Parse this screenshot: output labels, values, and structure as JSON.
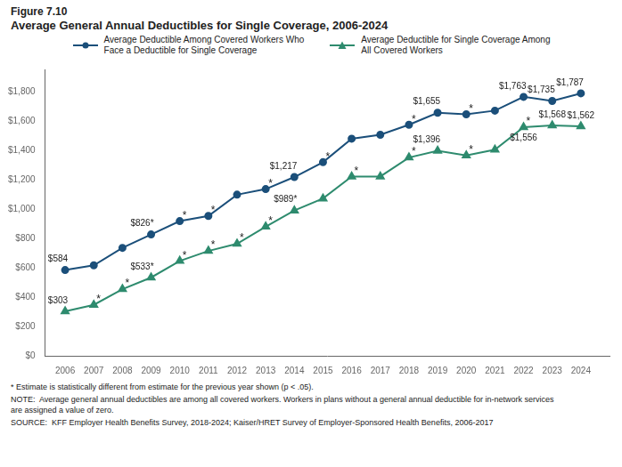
{
  "chart_data": {
    "type": "line",
    "title": [
      "Figure 7.10",
      "Average General Annual Deductibles for Single Coverage, 2006-2024"
    ],
    "x": [
      2006,
      2007,
      2008,
      2009,
      2010,
      2011,
      2012,
      2013,
      2014,
      2015,
      2016,
      2017,
      2018,
      2019,
      2020,
      2021,
      2022,
      2023,
      2024
    ],
    "xlim": [
      2005.3,
      2025.0
    ],
    "xticks": [
      2006,
      2007,
      2008,
      2009,
      2010,
      2011,
      2012,
      2013,
      2014,
      2015,
      2016,
      2017,
      2018,
      2019,
      2020,
      2021,
      2022,
      2023,
      2024
    ],
    "ylim": [
      0,
      1950
    ],
    "yticks": [
      {
        "value": 0,
        "label": "$0"
      },
      {
        "value": 200,
        "label": "$200"
      },
      {
        "value": 400,
        "label": "$400"
      },
      {
        "value": 600,
        "label": "$600"
      },
      {
        "value": 800,
        "label": "$800"
      },
      {
        "value": 1000,
        "label": "$1,000"
      },
      {
        "value": 1200,
        "label": "$1,200"
      },
      {
        "value": 1400,
        "label": "$1,400"
      },
      {
        "value": 1600,
        "label": "$1,600"
      },
      {
        "value": 1800,
        "label": "$1,800"
      }
    ],
    "grid": false,
    "legend": "top",
    "series": [
      {
        "name": "Average Deductible Among Covered Workers Who\nFace a Deductible for Single Coverage",
        "color": "#1B4F7A",
        "marker": "circle",
        "line_style": "solid",
        "values": [
          584,
          616,
          735,
          826,
          917,
          952,
          1097,
          1135,
          1217,
          1318,
          1478,
          1505,
          1573,
          1655,
          1644,
          1669,
          1763,
          1735,
          1787
        ],
        "value_labels": [
          "$584",
          null,
          null,
          "$826*",
          null,
          null,
          null,
          null,
          "$1,217",
          null,
          null,
          null,
          null,
          "$1,655",
          null,
          null,
          "$1,763",
          "$1,735",
          "$1,787"
        ]
      },
      {
        "name": "Average Deductible for Single Coverage Among\nAll Covered Workers",
        "color": "#2E8B6E",
        "marker": "triangle",
        "line_style": "solid",
        "values": [
          303,
          347,
          454,
          533,
          646,
          714,
          763,
          879,
          989,
          1071,
          1221,
          1221,
          1350,
          1396,
          1364,
          1403,
          1556,
          1568,
          1562
        ],
        "value_labels": [
          "$303",
          null,
          null,
          "$533*",
          null,
          null,
          null,
          null,
          "$989*",
          null,
          null,
          null,
          null,
          "$1,396",
          null,
          null,
          "$1,556",
          "$1,568",
          "$1,562"
        ]
      }
    ],
    "annotations": [
      {
        "x": 2010,
        "y": 917,
        "text": "*"
      },
      {
        "x": 2011,
        "y": 952,
        "text": "*"
      },
      {
        "x": 2013,
        "y": 1135,
        "text": "*"
      },
      {
        "x": 2015,
        "y": 1318,
        "text": "*"
      },
      {
        "x": 2018,
        "y": 1573,
        "text": "*"
      },
      {
        "x": 2020,
        "y": 1644,
        "text": "*"
      },
      {
        "x": 2007,
        "y": 347,
        "text": "*"
      },
      {
        "x": 2008,
        "y": 454,
        "text": "*"
      },
      {
        "x": 2010,
        "y": 646,
        "text": "*"
      },
      {
        "x": 2011,
        "y": 714,
        "text": "*"
      },
      {
        "x": 2012,
        "y": 763,
        "text": "*"
      },
      {
        "x": 2013,
        "y": 879,
        "text": "*"
      },
      {
        "x": 2016,
        "y": 1221,
        "text": "*"
      },
      {
        "x": 2018,
        "y": 1350,
        "text": "*"
      },
      {
        "x": 2020,
        "y": 1364,
        "text": "*"
      },
      {
        "x": 2022,
        "y": 1556,
        "text": "*"
      }
    ],
    "notes": [
      "* Estimate is statistically different from estimate for the previous year shown (p < .05).",
      "NOTE:  Average general annual deductibles are among all covered workers. Workers in plans without a general annual deductible for in-network services\nare assigned a value of zero.",
      "SOURCE:  KFF Employer Health Benefits Survey, 2018-2024; Kaiser/HRET Survey of Employer-Sponsored Health Benefits, 2006-2017"
    ]
  }
}
